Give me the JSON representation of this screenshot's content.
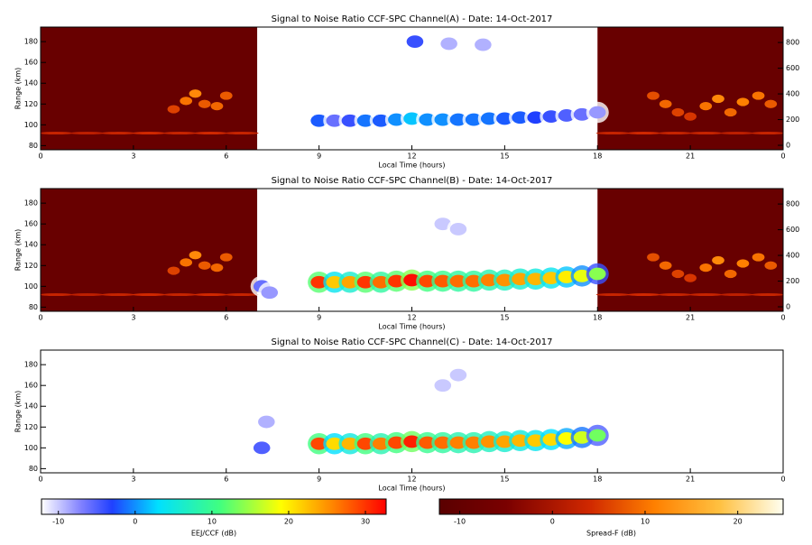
{
  "chart_data": [
    {
      "type": "rti",
      "title": "Signal to Noise Ratio CCF-SPC Channel(A) - Date: 14-Oct-2017",
      "xlabel": "Local Time (hours)",
      "ylabel": "Range (km)",
      "xlim": [
        0,
        24
      ],
      "xticks": [
        0,
        3,
        6,
        9,
        12,
        15,
        18,
        21,
        {
          "value": 24,
          "label": "0"
        }
      ],
      "ylim": [
        76,
        194
      ],
      "yticks": [
        80,
        100,
        120,
        140,
        160,
        180
      ],
      "y2lim": [
        -35,
        920
      ],
      "y2ticks": [
        0,
        200,
        400,
        600,
        800
      ],
      "night_segments": [
        [
          0,
          7
        ],
        [
          18,
          24
        ]
      ],
      "night_value": -9,
      "eej": {
        "x": [
          9.0,
          9.5,
          10.0,
          10.5,
          11.0,
          11.5,
          12.0,
          12.5,
          13.0,
          13.5,
          14.0,
          14.5,
          15.0,
          15.5,
          16.0,
          16.5,
          17.0,
          17.5,
          18.0,
          12.1,
          13.2,
          14.3
        ],
        "y": [
          104,
          104,
          104,
          104,
          104,
          105,
          106,
          105,
          105,
          105,
          105,
          106,
          106,
          107,
          107,
          108,
          109,
          110,
          112,
          180,
          178,
          177
        ],
        "values": [
          -2,
          -6,
          -4,
          -1,
          -2,
          0,
          2,
          0,
          0,
          -1,
          -1,
          -1,
          -2,
          -2,
          -3,
          -4,
          -5,
          -6,
          -8,
          -4,
          -9,
          -9
        ]
      },
      "spread_f": {
        "x": [
          4.3,
          4.7,
          5.0,
          5.3,
          5.7,
          6.0,
          19.8,
          20.2,
          20.6,
          21.0,
          21.5,
          21.9,
          22.3,
          22.7,
          23.2,
          23.6
        ],
        "y": [
          115,
          123,
          130,
          120,
          118,
          128,
          128,
          120,
          112,
          108,
          118,
          125,
          112,
          122,
          128,
          120
        ],
        "values": [
          6,
          10,
          12,
          8,
          9,
          8,
          7,
          9,
          6,
          5,
          10,
          12,
          9,
          11,
          10,
          8
        ]
      },
      "e_layer": {
        "x": [
          0.5,
          1.5,
          2.5,
          3.5,
          4.5,
          5.5,
          6.5,
          18.5,
          19.5,
          20.5,
          21.5,
          22.5,
          23.5
        ],
        "y": [
          92,
          92,
          92,
          92,
          92,
          92,
          92,
          92,
          92,
          92,
          92,
          92,
          92
        ],
        "values": [
          3,
          2,
          3,
          4,
          3,
          4,
          3,
          3,
          4,
          3,
          3,
          2,
          3
        ]
      }
    },
    {
      "type": "rti",
      "title": "Signal to Noise Ratio CCF-SPC Channel(B) - Date: 14-Oct-2017",
      "xlabel": "Local Time (hours)",
      "ylabel": "Range (km)",
      "xlim": [
        0,
        24
      ],
      "xticks": [
        0,
        3,
        6,
        9,
        12,
        15,
        18,
        21,
        {
          "value": 24,
          "label": "0"
        }
      ],
      "ylim": [
        76,
        194
      ],
      "yticks": [
        80,
        100,
        120,
        140,
        160,
        180
      ],
      "y2lim": [
        -35,
        920
      ],
      "y2ticks": [
        0,
        200,
        400,
        600,
        800
      ],
      "night_segments": [
        [
          0,
          7
        ],
        [
          18,
          24
        ]
      ],
      "night_value": -9,
      "eej": {
        "x": [
          9.0,
          9.5,
          10.0,
          10.5,
          11.0,
          11.5,
          12.0,
          12.5,
          13.0,
          13.5,
          14.0,
          14.5,
          15.0,
          15.5,
          16.0,
          16.5,
          17.0,
          17.5,
          18.0,
          7.15,
          7.4,
          13.0,
          13.5
        ],
        "y": [
          104,
          104,
          104,
          104,
          104,
          105,
          106,
          105,
          105,
          105,
          105,
          106,
          106,
          107,
          107,
          108,
          109,
          110,
          112,
          100,
          94,
          160,
          155
        ],
        "values": [
          30,
          22,
          24,
          30,
          27,
          30,
          32,
          29,
          28,
          27,
          27,
          26,
          25,
          24,
          23,
          22,
          20,
          18,
          14,
          -6,
          -8,
          -10,
          -10
        ]
      },
      "spread_f": {
        "x": [
          4.3,
          4.7,
          5.0,
          5.3,
          5.7,
          6.0,
          19.8,
          20.2,
          20.6,
          21.0,
          21.5,
          21.9,
          22.3,
          22.7,
          23.2,
          23.6
        ],
        "y": [
          115,
          123,
          130,
          120,
          118,
          128,
          128,
          120,
          112,
          108,
          118,
          125,
          112,
          122,
          128,
          120
        ],
        "values": [
          6,
          10,
          12,
          8,
          9,
          8,
          7,
          9,
          6,
          5,
          10,
          12,
          9,
          11,
          10,
          8
        ]
      },
      "e_layer": {
        "x": [
          0.5,
          1.5,
          2.5,
          3.5,
          4.5,
          5.5,
          6.5,
          18.5,
          19.5,
          20.5,
          21.5,
          22.5,
          23.5
        ],
        "y": [
          92,
          92,
          92,
          92,
          92,
          92,
          92,
          92,
          92,
          92,
          92,
          92,
          92
        ],
        "values": [
          3,
          2,
          3,
          4,
          3,
          4,
          3,
          3,
          4,
          3,
          3,
          2,
          3
        ]
      }
    },
    {
      "type": "rti",
      "title": "Signal to Noise Ratio CCF-SPC Channel(C) - Date: 14-Oct-2017",
      "xlabel": "Local Time (hours)",
      "ylabel": "Range (km)",
      "xlim": [
        0,
        24
      ],
      "xticks": [
        0,
        3,
        6,
        9,
        12,
        15,
        18,
        21,
        {
          "value": 24,
          "label": "0"
        }
      ],
      "ylim": [
        76,
        194
      ],
      "yticks": [
        80,
        100,
        120,
        140,
        160,
        180
      ],
      "eej": {
        "x": [
          9.0,
          9.5,
          10.0,
          10.5,
          11.0,
          11.5,
          12.0,
          12.5,
          13.0,
          13.5,
          14.0,
          14.5,
          15.0,
          15.5,
          16.0,
          16.5,
          17.0,
          17.5,
          18.0,
          7.15,
          7.3,
          13.0,
          13.5
        ],
        "y": [
          104,
          104,
          104,
          104,
          104,
          105,
          106,
          105,
          105,
          105,
          105,
          106,
          106,
          107,
          107,
          108,
          109,
          110,
          112,
          100,
          125,
          160,
          170
        ],
        "values": [
          29,
          21,
          23,
          29,
          26,
          29,
          31,
          28,
          27,
          26,
          26,
          25,
          24,
          23,
          22,
          21,
          19,
          17,
          13,
          -5,
          -9,
          -10,
          -10
        ]
      }
    },
    {
      "type": "colorbar",
      "label": "EEJ/CCF (dB)",
      "xlim": [
        -12.2,
        32.7
      ],
      "xticks": [
        -10,
        0,
        10,
        20,
        30
      ],
      "stops": [
        {
          "value": -12.2,
          "color": "#ffffff"
        },
        {
          "value": -7,
          "color": "#8080ff"
        },
        {
          "value": -3,
          "color": "#2040ff"
        },
        {
          "value": 3,
          "color": "#00e0ff"
        },
        {
          "value": 11,
          "color": "#40ff80"
        },
        {
          "value": 19,
          "color": "#ffff00"
        },
        {
          "value": 26,
          "color": "#ff8000"
        },
        {
          "value": 32.7,
          "color": "#ff0000"
        }
      ]
    },
    {
      "type": "colorbar",
      "label": "Spread-F (dB)",
      "xlim": [
        -12.2,
        24.9
      ],
      "xticks": [
        -10,
        0,
        10,
        20
      ],
      "stops": [
        {
          "value": -12.2,
          "color": "#5a0000"
        },
        {
          "value": -5,
          "color": "#7a0000"
        },
        {
          "value": 4,
          "color": "#d02800"
        },
        {
          "value": 11,
          "color": "#ff8000"
        },
        {
          "value": 18,
          "color": "#ffc040"
        },
        {
          "value": 24.9,
          "color": "#fffff0"
        }
      ]
    }
  ]
}
